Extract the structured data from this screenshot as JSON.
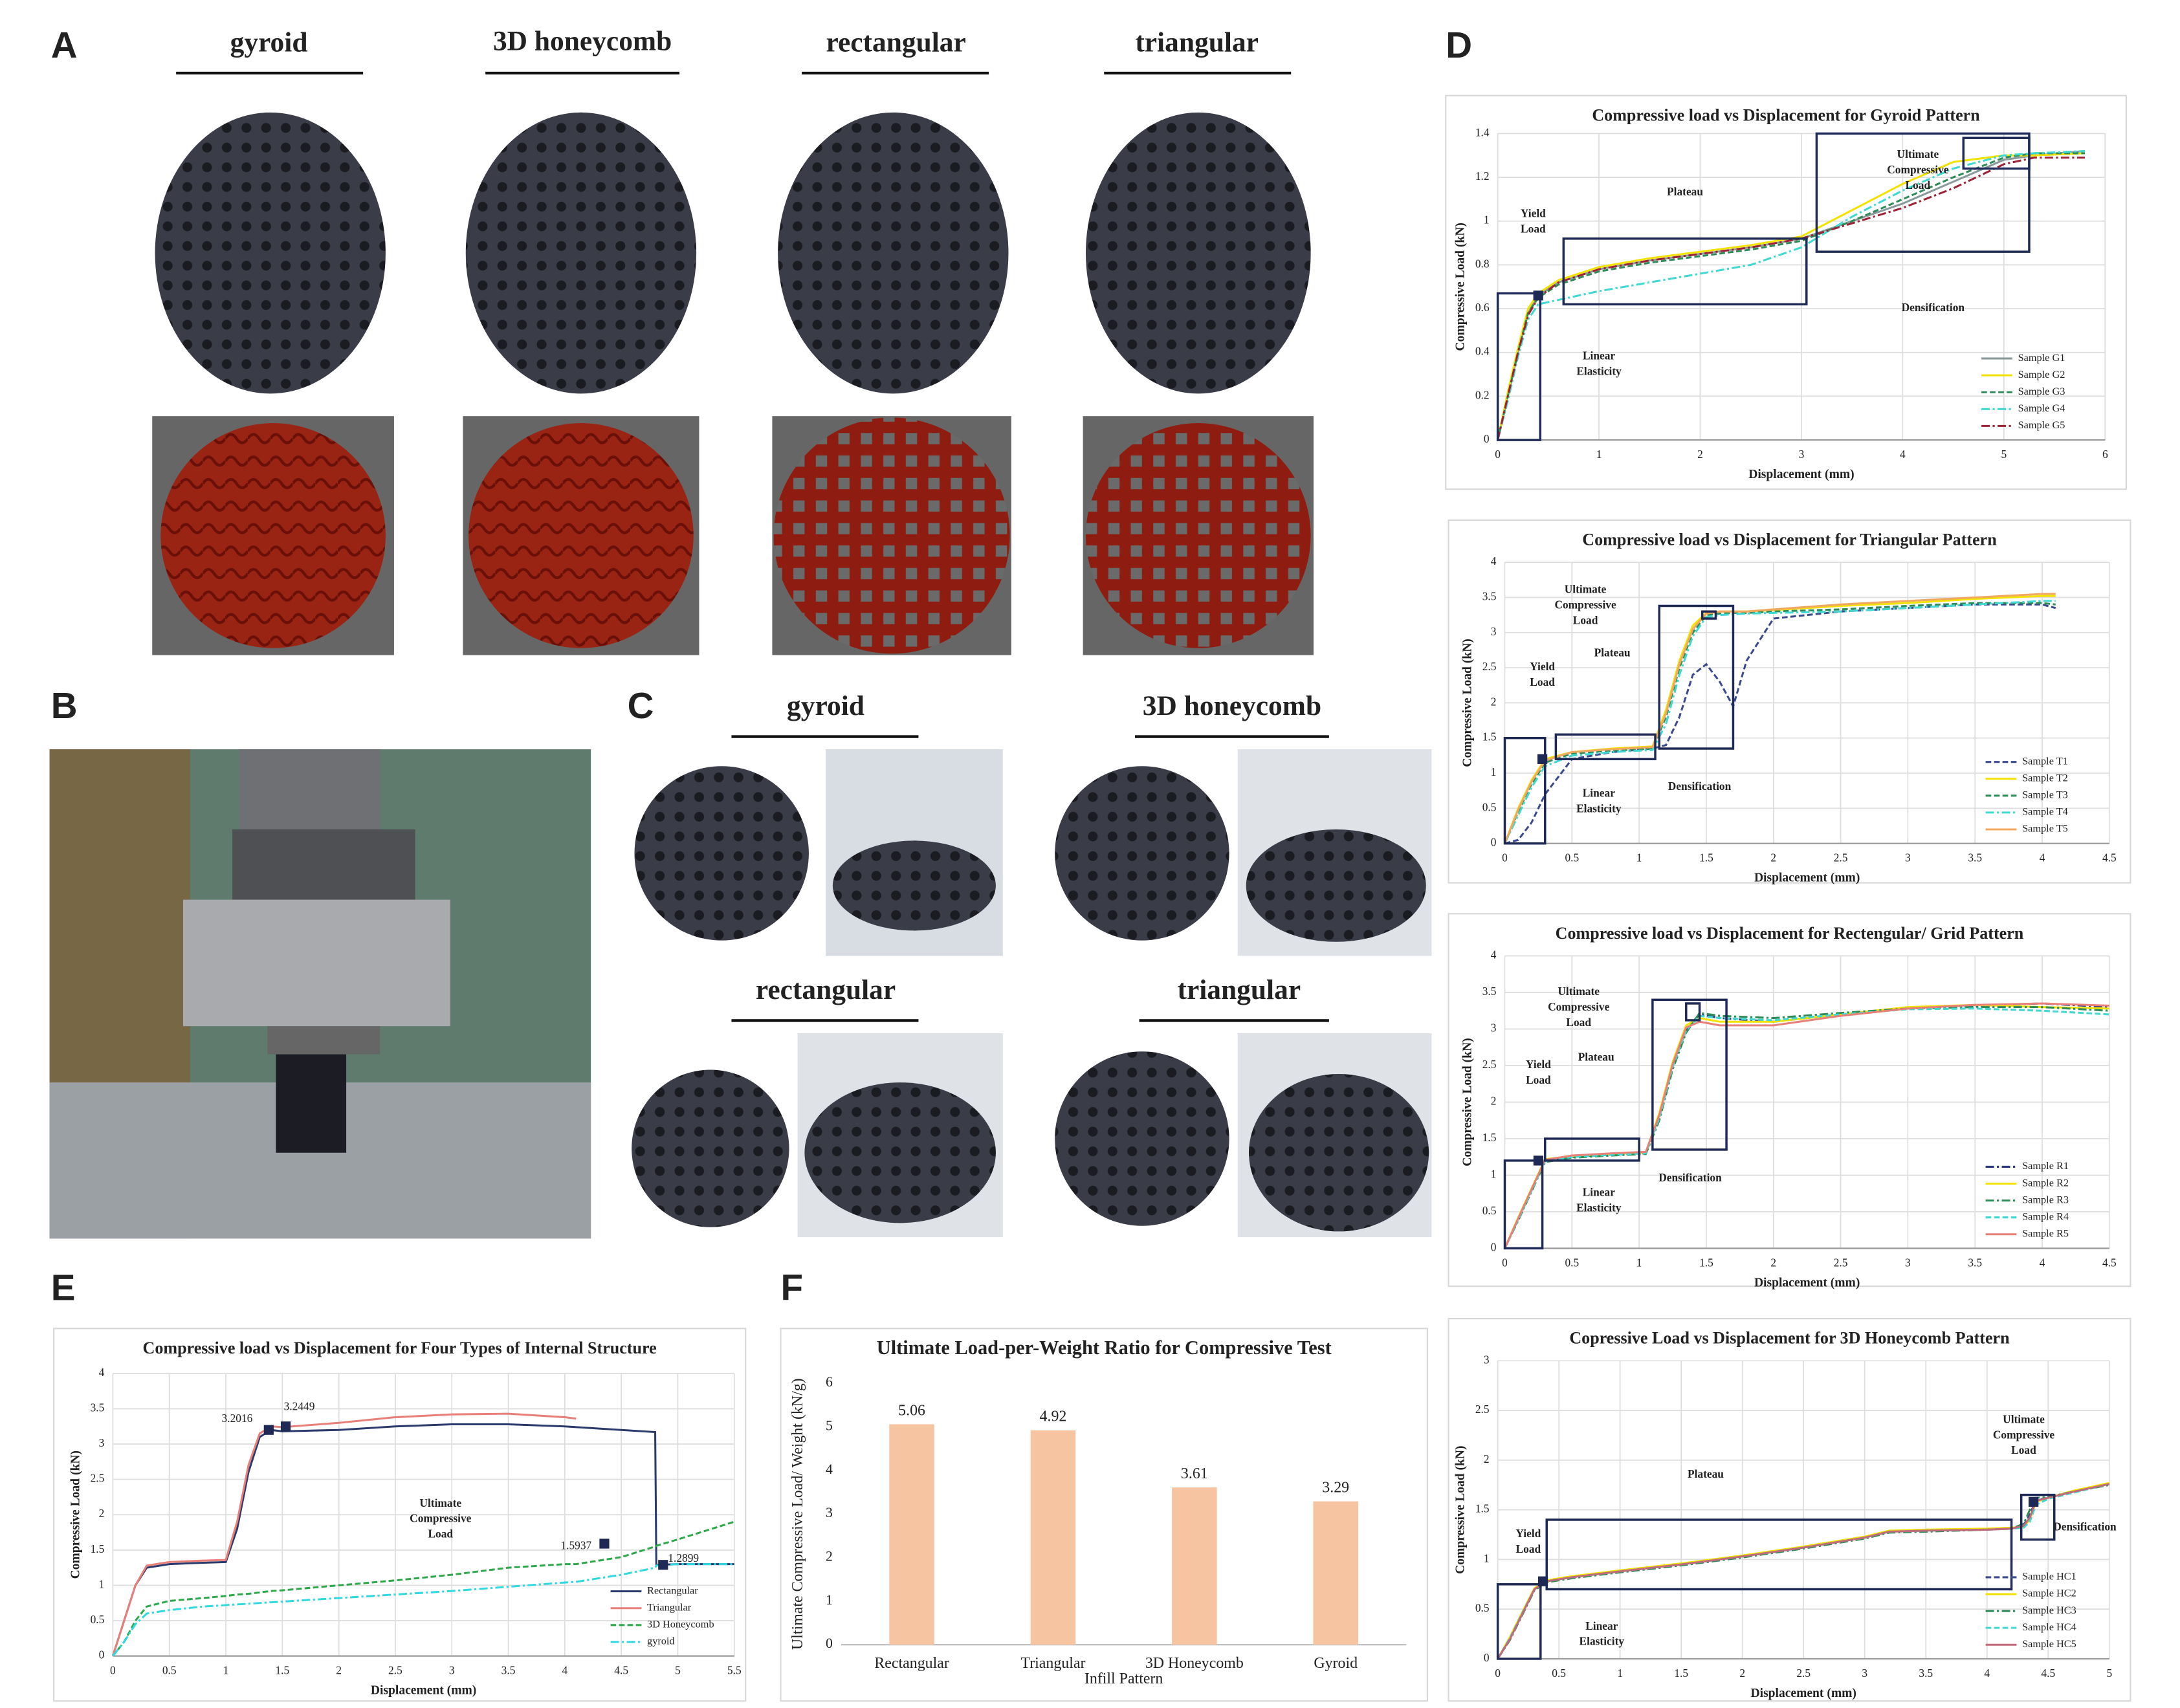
{
  "panel_labels": [
    "A",
    "B",
    "C",
    "D",
    "E",
    "F"
  ],
  "panel_a_captions": [
    "gyroid",
    "3D honeycomb",
    "rectangular",
    "triangular"
  ],
  "panel_c_captions": [
    "gyroid",
    "3D honeycomb",
    "rectangular",
    "triangular"
  ],
  "chart_data": [
    {
      "type": "line",
      "title": "Compressive load vs Displacement for Gyroid Pattern",
      "x_label": "Displacement (mm)",
      "y_label": "Compressive Load (kN)",
      "x": [
        0,
        0.1,
        0.2,
        0.3,
        0.4,
        0.6,
        1,
        1.5,
        2,
        2.5,
        3,
        3.5,
        4,
        4.5,
        5,
        5.3,
        5.8
      ],
      "xlim": [
        0,
        6
      ],
      "xticks": [
        0,
        1,
        2,
        3,
        4,
        5,
        6
      ],
      "ylim": [
        0,
        1.4
      ],
      "yticks": [
        0,
        0.2,
        0.4,
        0.6,
        0.8,
        1,
        1.2,
        1.4
      ],
      "grid": true,
      "legend": "lower right",
      "series": [
        {
          "name": "Sample G1",
          "color": "#8a9a9a",
          "style": "solid",
          "values": [
            0,
            0.2,
            0.4,
            0.58,
            0.66,
            0.72,
            0.78,
            0.82,
            0.85,
            0.88,
            0.92,
            1.0,
            1.08,
            1.18,
            1.28,
            1.3,
            1.32
          ]
        },
        {
          "name": "Sample G2",
          "color": "#f2e200",
          "style": "solid",
          "values": [
            0,
            0.22,
            0.42,
            0.6,
            0.67,
            0.73,
            0.79,
            0.83,
            0.86,
            0.89,
            0.93,
            1.05,
            1.17,
            1.27,
            1.3,
            1.3,
            1.31
          ]
        },
        {
          "name": "Sample G3",
          "color": "#2e8b57",
          "style": "dashed",
          "values": [
            0,
            0.2,
            0.4,
            0.58,
            0.65,
            0.71,
            0.77,
            0.81,
            0.84,
            0.87,
            0.91,
            1.0,
            1.1,
            1.2,
            1.29,
            1.31,
            1.31
          ]
        },
        {
          "name": "Sample G4",
          "color": "#40d8d0",
          "style": "dashdot",
          "values": [
            0,
            0.18,
            0.38,
            0.55,
            0.62,
            0.64,
            0.68,
            0.72,
            0.76,
            0.8,
            0.88,
            1.02,
            1.14,
            1.24,
            1.3,
            1.31,
            1.32
          ]
        },
        {
          "name": "Sample G5",
          "color": "#9b2335",
          "style": "dashdot",
          "values": [
            0,
            0.2,
            0.4,
            0.57,
            0.65,
            0.72,
            0.78,
            0.82,
            0.85,
            0.88,
            0.92,
            0.99,
            1.06,
            1.15,
            1.26,
            1.29,
            1.29
          ]
        }
      ],
      "annotations": [
        {
          "lines": [
            "Yield",
            "Load"
          ]
        },
        {
          "lines": [
            "Plateau"
          ]
        },
        {
          "lines": [
            "Ultimate",
            "Compressive",
            "Load"
          ]
        },
        {
          "lines": [
            "Densification"
          ]
        },
        {
          "lines": [
            "Linear",
            "Elasticity"
          ]
        }
      ]
    },
    {
      "type": "line",
      "title": "Compressive load vs Displacement for Triangular Pattern",
      "x_label": "Displacement (mm)",
      "y_label": "Compressive Load (kN)",
      "x": [
        0,
        0.1,
        0.2,
        0.3,
        0.5,
        0.8,
        1.1,
        1.2,
        1.3,
        1.4,
        1.5,
        1.6,
        1.7,
        1.8,
        2,
        2.5,
        3,
        3.5,
        4,
        4.1
      ],
      "xlim": [
        0,
        4.5
      ],
      "xticks": [
        0,
        0.5,
        1,
        1.5,
        2,
        2.5,
        3,
        3.5,
        4,
        4.5
      ],
      "ylim": [
        0,
        4
      ],
      "yticks": [
        0,
        0.5,
        1,
        1.5,
        2,
        2.5,
        3,
        3.5,
        4
      ],
      "grid": true,
      "legend": "lower right",
      "series": [
        {
          "name": "Sample T1",
          "color": "#3a4a8c",
          "style": "dashed",
          "values": [
            0,
            0.05,
            0.3,
            0.7,
            1.2,
            1.3,
            1.35,
            1.4,
            1.8,
            2.4,
            2.55,
            2.3,
            1.95,
            2.6,
            3.2,
            3.3,
            3.35,
            3.4,
            3.4,
            3.35
          ]
        },
        {
          "name": "Sample T2",
          "color": "#f2e200",
          "style": "solid",
          "values": [
            0,
            0.5,
            0.9,
            1.2,
            1.3,
            1.35,
            1.38,
            1.9,
            2.6,
            3.1,
            3.28,
            3.3,
            3.3,
            3.3,
            3.32,
            3.38,
            3.42,
            3.48,
            3.52,
            3.52
          ]
        },
        {
          "name": "Sample T3",
          "color": "#2e8b57",
          "style": "dashed",
          "values": [
            0,
            0.45,
            0.85,
            1.15,
            1.28,
            1.32,
            1.35,
            1.8,
            2.5,
            3.0,
            3.25,
            3.27,
            3.28,
            3.28,
            3.3,
            3.33,
            3.38,
            3.42,
            3.42,
            3.4
          ]
        },
        {
          "name": "Sample T4",
          "color": "#40d8d0",
          "style": "dashdot",
          "values": [
            0,
            0.4,
            0.8,
            1.1,
            1.25,
            1.3,
            1.33,
            1.7,
            2.4,
            2.95,
            3.22,
            3.25,
            3.26,
            3.27,
            3.28,
            3.3,
            3.35,
            3.4,
            3.45,
            3.45
          ]
        },
        {
          "name": "Sample T5",
          "color": "#f0a860",
          "style": "solid",
          "values": [
            0,
            0.48,
            0.88,
            1.18,
            1.3,
            1.34,
            1.37,
            1.85,
            2.55,
            3.05,
            3.27,
            3.3,
            3.3,
            3.3,
            3.33,
            3.4,
            3.45,
            3.5,
            3.55,
            3.55
          ]
        }
      ],
      "annotations": [
        {
          "lines": [
            "Ultimate",
            "Compressive",
            "Load"
          ]
        },
        {
          "lines": [
            "Yield",
            "Load"
          ]
        },
        {
          "lines": [
            "Plateau"
          ]
        },
        {
          "lines": [
            "Linear",
            "Elasticity"
          ]
        },
        {
          "lines": [
            "Densification"
          ]
        }
      ]
    },
    {
      "type": "line",
      "title": "Compressive load vs Displacement for Rectengular/ Grid Pattern",
      "x_label": "Displacement (mm)",
      "y_label": "Compressive Load (kN)",
      "x": [
        0,
        0.1,
        0.2,
        0.3,
        0.5,
        0.8,
        1.05,
        1.15,
        1.25,
        1.35,
        1.45,
        1.6,
        2,
        2.5,
        3,
        3.5,
        4,
        4.5
      ],
      "xlim": [
        0,
        4.5
      ],
      "xticks": [
        0,
        0.5,
        1,
        1.5,
        2,
        2.5,
        3,
        3.5,
        4,
        4.5
      ],
      "ylim": [
        0,
        4
      ],
      "yticks": [
        0,
        0.5,
        1,
        1.5,
        2,
        2.5,
        3,
        3.5,
        4
      ],
      "grid": true,
      "legend": "lower right",
      "series": [
        {
          "name": "Sample R1",
          "color": "#2a3a7c",
          "style": "dashdot",
          "values": [
            0,
            0.4,
            0.8,
            1.2,
            1.25,
            1.28,
            1.3,
            1.8,
            2.5,
            3.0,
            3.2,
            3.15,
            3.1,
            3.2,
            3.28,
            3.32,
            3.35,
            3.3
          ]
        },
        {
          "name": "Sample R2",
          "color": "#f2e200",
          "style": "solid",
          "values": [
            0,
            0.42,
            0.82,
            1.22,
            1.26,
            1.29,
            1.31,
            1.85,
            2.55,
            3.05,
            3.15,
            3.1,
            3.1,
            3.2,
            3.3,
            3.33,
            3.3,
            3.28
          ]
        },
        {
          "name": "Sample R3",
          "color": "#2e8b57",
          "style": "dashdot",
          "values": [
            0,
            0.38,
            0.78,
            1.18,
            1.24,
            1.27,
            1.29,
            1.75,
            2.45,
            2.95,
            3.22,
            3.18,
            3.15,
            3.22,
            3.28,
            3.3,
            3.3,
            3.25
          ]
        },
        {
          "name": "Sample R4",
          "color": "#40d8d0",
          "style": "dashed",
          "values": [
            0,
            0.39,
            0.79,
            1.19,
            1.25,
            1.28,
            1.3,
            1.78,
            2.48,
            2.98,
            3.18,
            3.15,
            3.12,
            3.2,
            3.27,
            3.28,
            3.25,
            3.2
          ]
        },
        {
          "name": "Sample R5",
          "color": "#e8807a",
          "style": "solid",
          "values": [
            0,
            0.41,
            0.81,
            1.21,
            1.27,
            1.3,
            1.32,
            1.82,
            2.52,
            3.02,
            3.1,
            3.05,
            3.05,
            3.18,
            3.28,
            3.33,
            3.35,
            3.32
          ]
        }
      ],
      "annotations": [
        {
          "lines": [
            "Ultimate",
            "Compressive",
            "Load"
          ]
        },
        {
          "lines": [
            "Yield",
            "Load"
          ]
        },
        {
          "lines": [
            "Plateau"
          ]
        },
        {
          "lines": [
            "Linear",
            "Elasticity"
          ]
        },
        {
          "lines": [
            "Densification"
          ]
        }
      ]
    },
    {
      "type": "line",
      "title": "Copressive Load vs Displacement for 3D Honeycomb Pattern",
      "x_label": "Displacement (mm)",
      "y_label": "Compressive Load (kN)",
      "x": [
        0,
        0.1,
        0.2,
        0.3,
        0.4,
        0.6,
        1,
        1.5,
        2,
        2.5,
        3,
        3.2,
        3.5,
        4,
        4.2,
        4.3,
        4.35,
        4.4,
        4.5,
        4.7,
        5
      ],
      "xlim": [
        0,
        5
      ],
      "xticks": [
        0,
        0.5,
        1,
        1.5,
        2,
        2.5,
        3,
        3.5,
        4,
        4.5,
        5
      ],
      "ylim": [
        0,
        3
      ],
      "yticks": [
        0,
        0.5,
        1,
        1.5,
        2,
        2.5,
        3
      ],
      "grid": true,
      "legend": "lower right",
      "series": [
        {
          "name": "Sample HC1",
          "color": "#3a4a8c",
          "style": "dashed",
          "values": [
            0,
            0.2,
            0.45,
            0.7,
            0.78,
            0.82,
            0.88,
            0.95,
            1.03,
            1.12,
            1.22,
            1.28,
            1.29,
            1.3,
            1.31,
            1.35,
            1.45,
            1.6,
            1.62,
            1.68,
            1.76
          ]
        },
        {
          "name": "Sample HC2",
          "color": "#f2e200",
          "style": "solid",
          "values": [
            0,
            0.22,
            0.47,
            0.71,
            0.79,
            0.83,
            0.89,
            0.96,
            1.04,
            1.13,
            1.23,
            1.29,
            1.3,
            1.31,
            1.32,
            1.33,
            1.4,
            1.58,
            1.62,
            1.69,
            1.77
          ]
        },
        {
          "name": "Sample HC3",
          "color": "#2e8b57",
          "style": "dashdot",
          "values": [
            0,
            0.19,
            0.44,
            0.69,
            0.77,
            0.81,
            0.87,
            0.94,
            1.02,
            1.11,
            1.21,
            1.27,
            1.28,
            1.3,
            1.31,
            1.36,
            1.5,
            1.62,
            1.63,
            1.68,
            1.75
          ]
        },
        {
          "name": "Sample HC4",
          "color": "#40d8d0",
          "style": "dashed",
          "values": [
            0,
            0.21,
            0.46,
            0.7,
            0.78,
            0.82,
            0.88,
            0.95,
            1.03,
            1.12,
            1.22,
            1.28,
            1.29,
            1.3,
            1.31,
            1.32,
            1.38,
            1.55,
            1.61,
            1.67,
            1.76
          ]
        },
        {
          "name": "Sample HC5",
          "color": "#c06a7a",
          "style": "solid",
          "values": [
            0,
            0.2,
            0.45,
            0.7,
            0.78,
            0.82,
            0.88,
            0.95,
            1.03,
            1.12,
            1.22,
            1.28,
            1.29,
            1.3,
            1.31,
            1.34,
            1.42,
            1.59,
            1.62,
            1.68,
            1.76
          ]
        }
      ],
      "annotations": [
        {
          "lines": [
            "Ultimate",
            "Compressive",
            "Load"
          ]
        },
        {
          "lines": [
            "Plateau"
          ]
        },
        {
          "lines": [
            "Densification"
          ]
        },
        {
          "lines": [
            "Yield",
            "Load"
          ]
        },
        {
          "lines": [
            "Linear",
            "Elasticity"
          ]
        }
      ]
    },
    {
      "type": "line",
      "title": "Compressive load vs Displacement for Four Types of Internal Structure",
      "x_label": "Displacement (mm)",
      "y_label": "Compressive Load (kN)",
      "x": [
        0,
        0.1,
        0.2,
        0.3,
        0.5,
        0.8,
        1,
        1.1,
        1.2,
        1.3,
        1.4,
        1.5,
        2,
        2.5,
        3,
        3.5,
        4,
        4.1,
        4.5,
        4.8,
        4.81,
        5,
        5.5
      ],
      "xlim": [
        0,
        5.5
      ],
      "xticks": [
        0,
        0.5,
        1,
        1.5,
        2,
        2.5,
        3,
        3.5,
        4,
        4.5,
        5,
        5.5
      ],
      "ylim": [
        0,
        4
      ],
      "yticks": [
        0,
        0.5,
        1,
        1.5,
        2,
        2.5,
        3,
        3.5,
        4
      ],
      "grid": true,
      "legend": "lower right",
      "series": [
        {
          "name": "Rectangular",
          "color": "#2a3a6c",
          "style": "solid",
          "values": [
            0,
            0.5,
            1.0,
            1.25,
            1.3,
            1.32,
            1.33,
            1.8,
            2.6,
            3.1,
            3.2,
            3.18,
            3.2,
            3.25,
            3.28,
            3.28,
            3.25,
            3.24,
            3.2,
            3.17,
            1.29,
            1.3,
            1.3
          ]
        },
        {
          "name": "Triangular",
          "color": "#e8807a",
          "style": "solid",
          "values": [
            0,
            0.5,
            1.0,
            1.28,
            1.33,
            1.35,
            1.36,
            1.9,
            2.7,
            3.15,
            3.25,
            3.24,
            3.3,
            3.38,
            3.42,
            3.43,
            3.38,
            3.36,
            null,
            null,
            null,
            null,
            null
          ]
        },
        {
          "name": "3D Honeycomb",
          "color": "#2ea84a",
          "style": "dashed",
          "values": [
            0,
            0.2,
            0.5,
            0.7,
            0.78,
            0.82,
            0.85,
            0.87,
            0.88,
            0.9,
            0.92,
            0.93,
            1.0,
            1.07,
            1.15,
            1.25,
            1.3,
            1.3,
            1.4,
            1.55,
            1.56,
            1.65,
            1.9
          ]
        },
        {
          "name": "gyroid",
          "color": "#30d8e0",
          "style": "dashdot",
          "values": [
            0,
            0.2,
            0.45,
            0.6,
            0.65,
            0.7,
            0.72,
            0.73,
            0.74,
            0.75,
            0.76,
            0.77,
            0.82,
            0.87,
            0.92,
            0.98,
            1.04,
            1.05,
            1.15,
            1.25,
            1.28,
            1.3,
            1.3
          ]
        }
      ],
      "annotations": [
        {
          "lines": [
            "3.2016"
          ]
        },
        {
          "lines": [
            "3.2449"
          ]
        },
        {
          "lines": [
            "Ultimate",
            "Compressive",
            "Load"
          ]
        },
        {
          "lines": [
            "1.5937"
          ]
        },
        {
          "lines": [
            "1.2899"
          ]
        }
      ]
    },
    {
      "type": "bar",
      "title": "Ultimate Load-per-Weight Ratio for Compressive Test",
      "x_label": "Infill Pattern",
      "y_label": "Ultimate Compressive Load/ Weight (kN/g)",
      "categories": [
        "Rectangular",
        "Triangular",
        "3D Honeycomb",
        "Gyroid"
      ],
      "values": [
        5.06,
        4.92,
        3.61,
        3.29
      ],
      "color": "#f6c4a0",
      "ylim": [
        0,
        6
      ],
      "yticks": [
        0,
        1,
        2,
        3,
        4,
        5,
        6
      ],
      "grid": false
    }
  ]
}
